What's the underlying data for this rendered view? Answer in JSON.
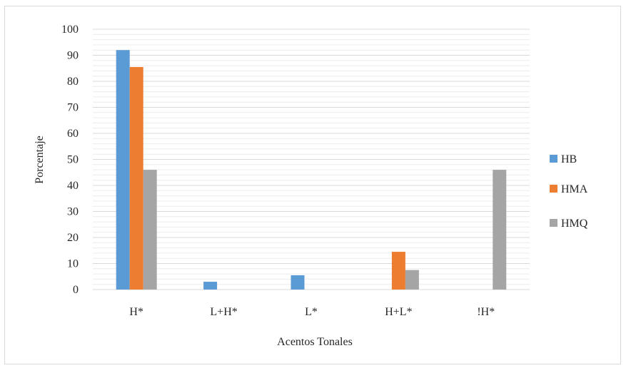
{
  "chart_data": {
    "type": "bar",
    "title": "",
    "xlabel": "Acentos Tonales",
    "ylabel": "Porcentaje",
    "categories": [
      "H*",
      "L+H*",
      "L*",
      "H+L*",
      "!H*"
    ],
    "series": [
      {
        "name": "HB",
        "color": "#5b9bd5",
        "values": [
          92,
          3,
          5.5,
          0,
          0
        ]
      },
      {
        "name": "HMA",
        "color": "#ed7d31",
        "values": [
          85.5,
          0,
          0,
          14.5,
          0
        ]
      },
      {
        "name": "HMQ",
        "color": "#a5a5a5",
        "values": [
          46,
          0,
          0,
          7.5,
          46
        ]
      }
    ],
    "ylim": [
      0,
      100
    ],
    "yticks": [
      0,
      10,
      20,
      30,
      40,
      50,
      60,
      70,
      80,
      90,
      100
    ],
    "grid": true,
    "legend_position": "right"
  }
}
